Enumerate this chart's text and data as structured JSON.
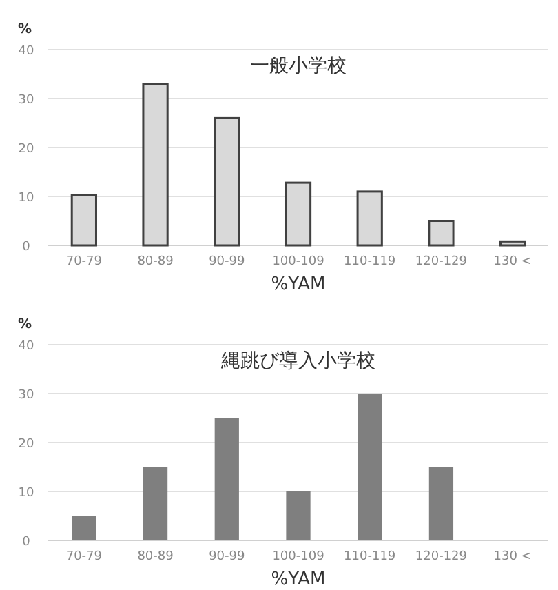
{
  "chart_data": [
    {
      "type": "bar",
      "title": "一般小学校",
      "ylabel": "%",
      "xlabel": "%YAM",
      "categories": [
        "70-79",
        "80-89",
        "90-99",
        "100-109",
        "110-119",
        "120-129",
        "130 <"
      ],
      "values": [
        10.3,
        33,
        26,
        12.8,
        11,
        5,
        0.8
      ],
      "color": "#d9d9d9",
      "ylim": [
        0,
        40
      ],
      "yticks": [
        0,
        10,
        20,
        30,
        40
      ],
      "grid": "y"
    },
    {
      "type": "bar",
      "title": "縄跳び導入小学校",
      "ylabel": "%",
      "xlabel": "%YAM",
      "categories": [
        "70-79",
        "80-89",
        "90-99",
        "100-109",
        "110-119",
        "120-129",
        "130 <"
      ],
      "values": [
        5,
        15,
        25,
        10,
        30,
        15,
        0
      ],
      "color": "#7f7f7f",
      "ylim": [
        0,
        40
      ],
      "yticks": [
        0,
        10,
        20,
        30,
        40
      ],
      "grid": "y"
    }
  ]
}
